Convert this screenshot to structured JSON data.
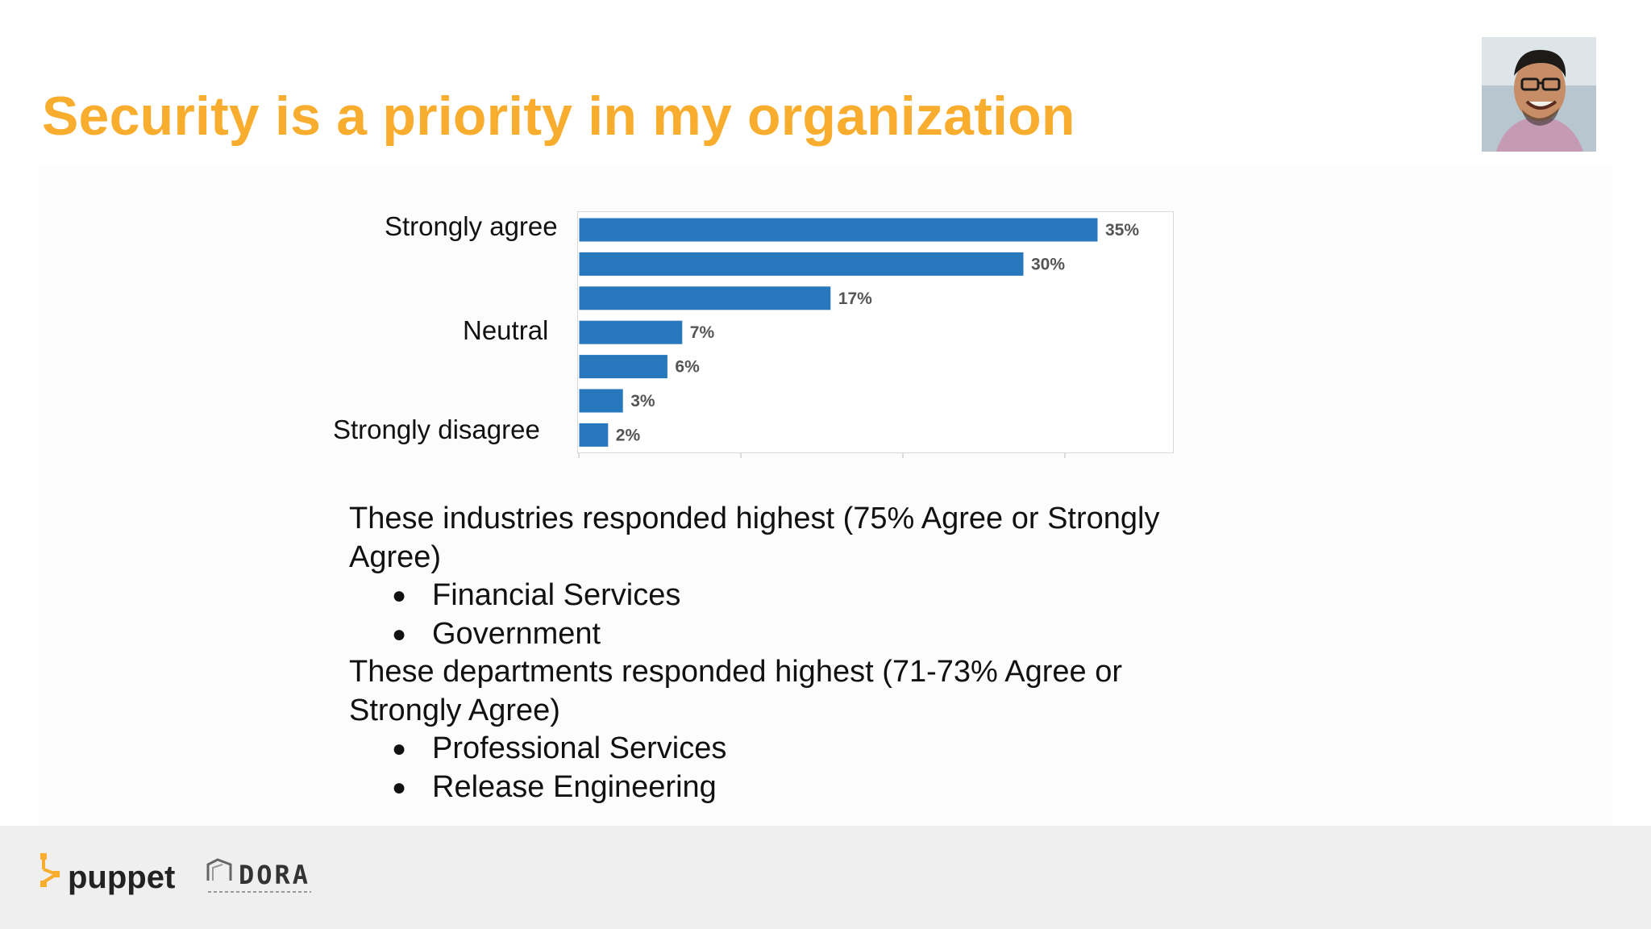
{
  "slide": {
    "title": "Security is a priority in my organization"
  },
  "chart_data": {
    "type": "bar",
    "orientation": "horizontal",
    "title": "",
    "categories": [
      "Strongly agree",
      "",
      "",
      "Neutral",
      "",
      "",
      "Strongly disagree"
    ],
    "values": [
      35,
      30,
      17,
      7,
      6,
      3,
      2
    ],
    "value_labels": [
      "35%",
      "30%",
      "17%",
      "7%",
      "6%",
      "3%",
      "2%"
    ],
    "unit": "%",
    "xlim": [
      0,
      40
    ],
    "grid": false,
    "legend": "none",
    "bar_color": "#2878bd"
  },
  "notes": {
    "industries_heading": "These industries responded highest (75% Agree or Strongly Agree)",
    "industries": [
      "Financial Services",
      "Government"
    ],
    "departments_heading": "These departments responded highest (71-73% Agree or Strongly Agree)",
    "departments": [
      "Professional Services",
      "Release Engineering"
    ]
  },
  "footer": {
    "logo_puppet": "puppet",
    "logo_dora": "DORA"
  },
  "colors": {
    "title": "#f9ad2f",
    "bar": "#2878bd",
    "footer_bg": "#efefef"
  }
}
